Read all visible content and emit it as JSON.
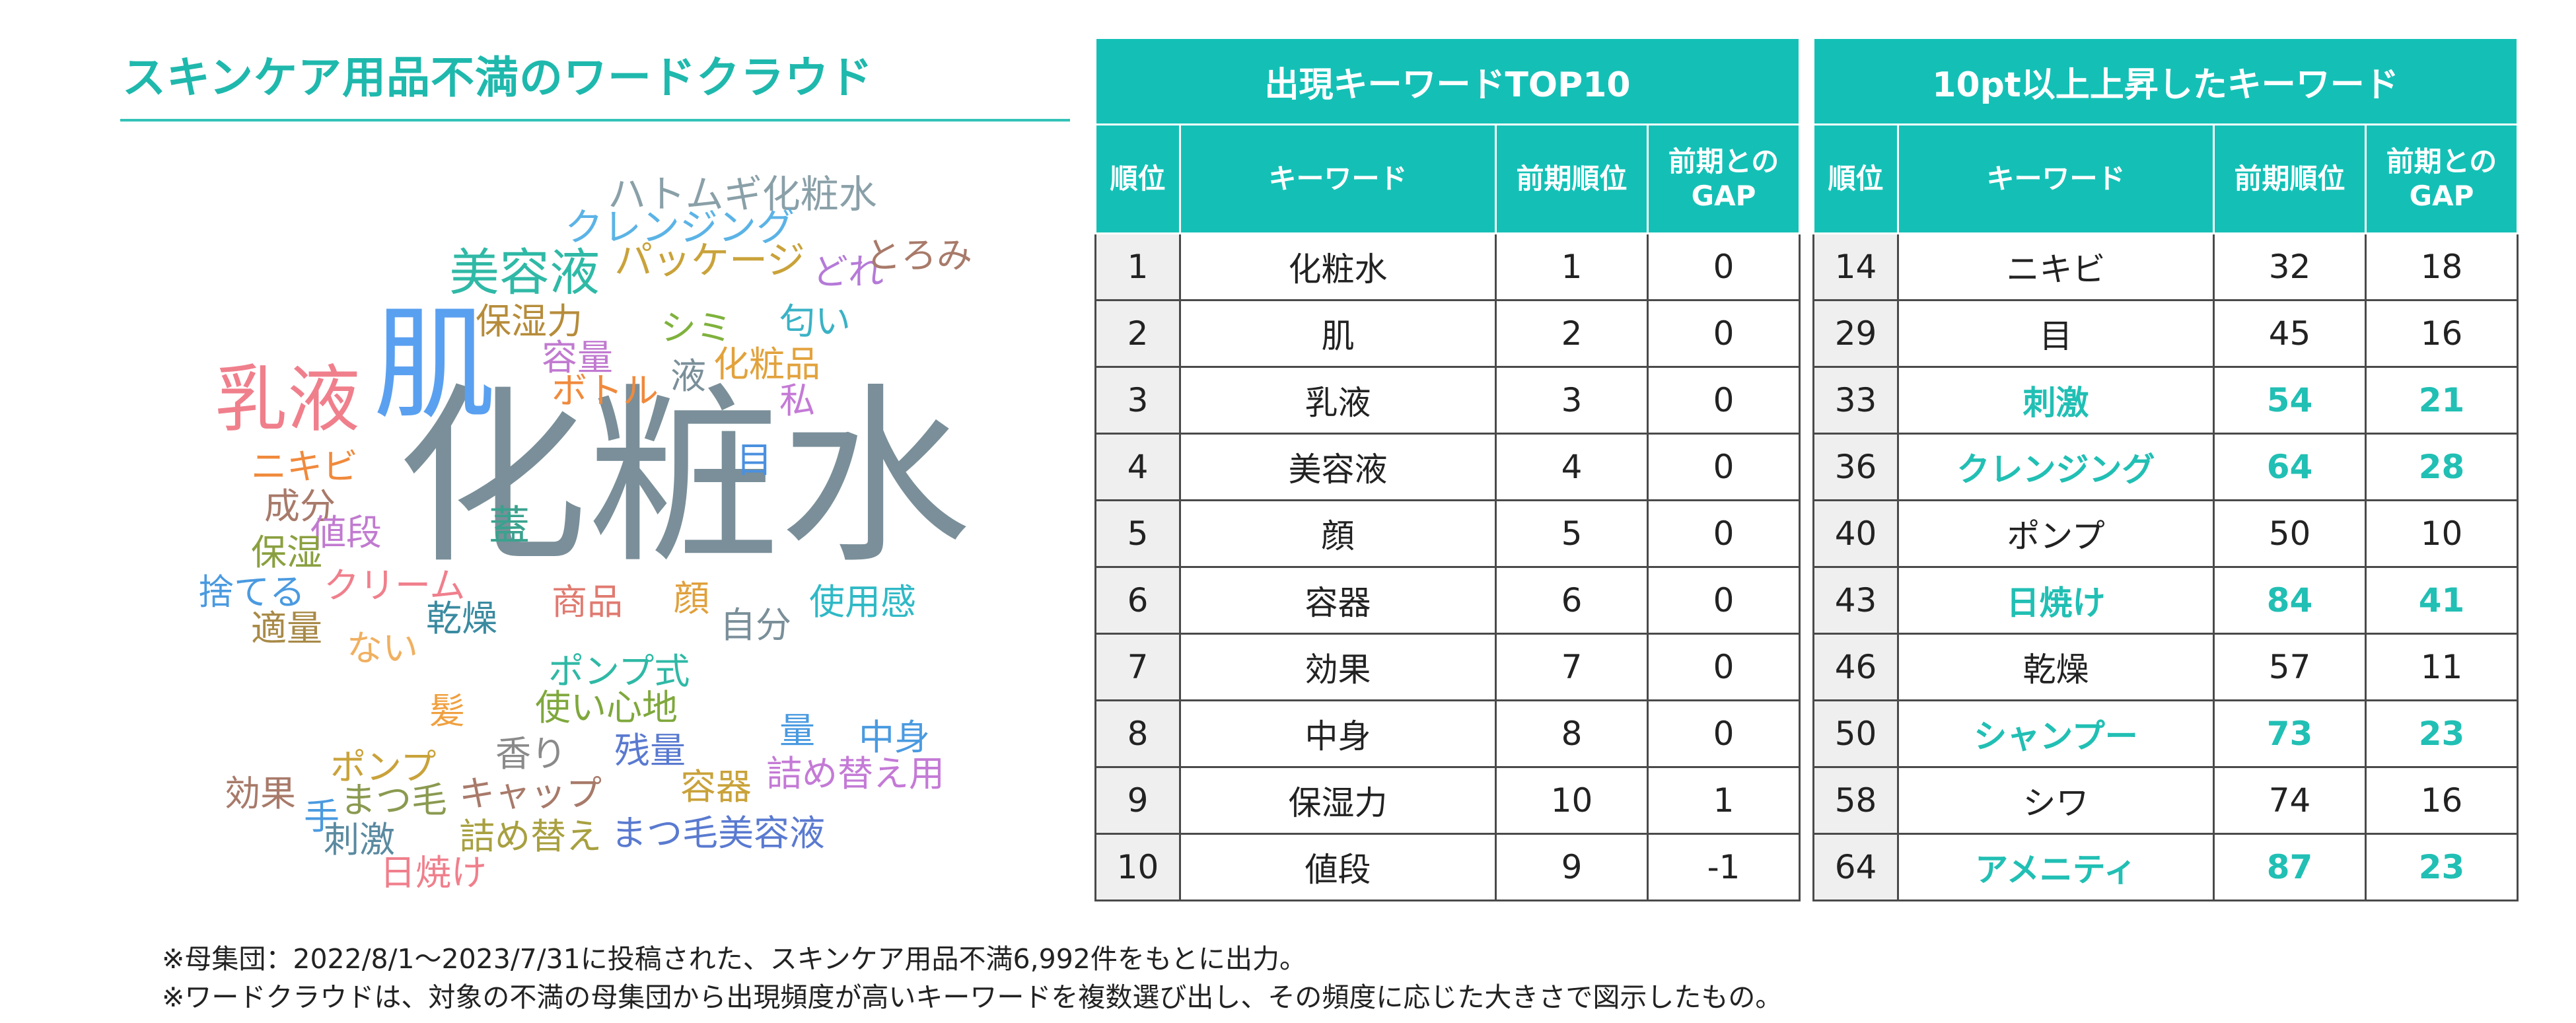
{
  "title": "スキンケア用品不満のワードクラウド",
  "cloud": {
    "words": [
      {
        "text": "化粧水",
        "color": "#7a8f99"
      },
      {
        "text": "肌",
        "color": "#5aa0f0"
      },
      {
        "text": "乳液",
        "color": "#f07f8c"
      },
      {
        "text": "美容液",
        "color": "#2fb9a6"
      },
      {
        "text": "ハトムギ化粧水",
        "color": "#8aa0a8"
      },
      {
        "text": "クレンジング",
        "color": "#5bb3e6"
      },
      {
        "text": "パッケージ",
        "color": "#c9a23a"
      },
      {
        "text": "どれ",
        "color": "#b57ad8"
      },
      {
        "text": "とろみ",
        "color": "#a87a6a"
      },
      {
        "text": "保湿力",
        "color": "#b68c3b"
      },
      {
        "text": "シミ",
        "color": "#7fb23d"
      },
      {
        "text": "匂い",
        "color": "#3ab2c6"
      },
      {
        "text": "容量",
        "color": "#c17ad0"
      },
      {
        "text": "液",
        "color": "#7a8f99"
      },
      {
        "text": "化粧品",
        "color": "#e2a23c"
      },
      {
        "text": "ボトル",
        "color": "#f08a3c"
      },
      {
        "text": "私",
        "color": "#c47ad6"
      },
      {
        "text": "ニキビ",
        "color": "#f08a3c"
      },
      {
        "text": "目",
        "color": "#4a90e0"
      },
      {
        "text": "成分",
        "color": "#a87a6a"
      },
      {
        "text": "値段",
        "color": "#c17ad0"
      },
      {
        "text": "蓋",
        "color": "#3aa28e"
      },
      {
        "text": "保湿",
        "color": "#8aa040"
      },
      {
        "text": "捨てる",
        "color": "#4a9ae0"
      },
      {
        "text": "クリーム",
        "color": "#f07f8c"
      },
      {
        "text": "商品",
        "color": "#e07a70"
      },
      {
        "text": "顔",
        "color": "#e0a03c"
      },
      {
        "text": "使用感",
        "color": "#2fb9c6"
      },
      {
        "text": "適量",
        "color": "#a88a48"
      },
      {
        "text": "乾燥",
        "color": "#3a8aa0"
      },
      {
        "text": "自分",
        "color": "#7a8f99"
      },
      {
        "text": "ない",
        "color": "#f0b060"
      },
      {
        "text": "ポンプ式",
        "color": "#2fb9a6"
      },
      {
        "text": "髪",
        "color": "#f0a040"
      },
      {
        "text": "使い心地",
        "color": "#7fa83d"
      },
      {
        "text": "量",
        "color": "#4a9ae0"
      },
      {
        "text": "中身",
        "color": "#4a9ae0"
      },
      {
        "text": "香り",
        "color": "#8a8a8a"
      },
      {
        "text": "残量",
        "color": "#5a7ad0"
      },
      {
        "text": "ポンプ",
        "color": "#c9a23a"
      },
      {
        "text": "詰め替え用",
        "color": "#c47ad6"
      },
      {
        "text": "効果",
        "color": "#a87a6a"
      },
      {
        "text": "まつ毛",
        "color": "#8a9a50"
      },
      {
        "text": "キャップ",
        "color": "#a87a6a"
      },
      {
        "text": "容器",
        "color": "#c9a23a"
      },
      {
        "text": "手",
        "color": "#4a9ae0"
      },
      {
        "text": "刺激",
        "color": "#5a8aa0"
      },
      {
        "text": "詰め替え",
        "color": "#a8a040"
      },
      {
        "text": "まつ毛美容液",
        "color": "#5a7ad0"
      },
      {
        "text": "日焼け",
        "color": "#f07f8c"
      }
    ]
  },
  "table1": {
    "title": "出現キーワードTOP10",
    "headers": [
      "順位",
      "キーワード",
      "前期順位",
      "前期との\nGAP"
    ],
    "rows": [
      {
        "rank": "1",
        "keyword": "化粧水",
        "prev": "1",
        "gap": "0"
      },
      {
        "rank": "2",
        "keyword": "肌",
        "prev": "2",
        "gap": "0"
      },
      {
        "rank": "3",
        "keyword": "乳液",
        "prev": "3",
        "gap": "0"
      },
      {
        "rank": "4",
        "keyword": "美容液",
        "prev": "4",
        "gap": "0"
      },
      {
        "rank": "5",
        "keyword": "顔",
        "prev": "5",
        "gap": "0"
      },
      {
        "rank": "6",
        "keyword": "容器",
        "prev": "6",
        "gap": "0"
      },
      {
        "rank": "7",
        "keyword": "効果",
        "prev": "7",
        "gap": "0"
      },
      {
        "rank": "8",
        "keyword": "中身",
        "prev": "8",
        "gap": "0"
      },
      {
        "rank": "9",
        "keyword": "保湿力",
        "prev": "10",
        "gap": "1"
      },
      {
        "rank": "10",
        "keyword": "値段",
        "prev": "9",
        "gap": "-1"
      }
    ]
  },
  "table2": {
    "title": "10pt以上上昇したキーワード",
    "headers": [
      "順位",
      "キーワード",
      "前期順位",
      "前期との\nGAP"
    ],
    "highlight_color": "#21bfb4",
    "rows": [
      {
        "rank": "14",
        "keyword": "ニキビ",
        "prev": "32",
        "gap": "18",
        "highlight": false
      },
      {
        "rank": "29",
        "keyword": "目",
        "prev": "45",
        "gap": "16",
        "highlight": false
      },
      {
        "rank": "33",
        "keyword": "刺激",
        "prev": "54",
        "gap": "21",
        "highlight": true
      },
      {
        "rank": "36",
        "keyword": "クレンジング",
        "prev": "64",
        "gap": "28",
        "highlight": true
      },
      {
        "rank": "40",
        "keyword": "ポンプ",
        "prev": "50",
        "gap": "10",
        "highlight": false
      },
      {
        "rank": "43",
        "keyword": "日焼け",
        "prev": "84",
        "gap": "41",
        "highlight": true
      },
      {
        "rank": "46",
        "keyword": "乾燥",
        "prev": "57",
        "gap": "11",
        "highlight": false
      },
      {
        "rank": "50",
        "keyword": "シャンプー",
        "prev": "73",
        "gap": "23",
        "highlight": true
      },
      {
        "rank": "58",
        "keyword": "シワ",
        "prev": "74",
        "gap": "16",
        "highlight": false
      },
      {
        "rank": "64",
        "keyword": "アメニティ",
        "prev": "87",
        "gap": "23",
        "highlight": true
      }
    ]
  },
  "notes": [
    "※母集団：2022/8/1～2023/7/31に投稿された、スキンケア用品不満6,992件をもとに出力。",
    "※ワードクラウドは、対象の不満の母集団から出現頻度が高いキーワードを複数選び出し、その頻度に応じた大きさで図示したもの。"
  ],
  "colors": {
    "accent": "#14c0b6",
    "highlight": "#21bfb4"
  }
}
